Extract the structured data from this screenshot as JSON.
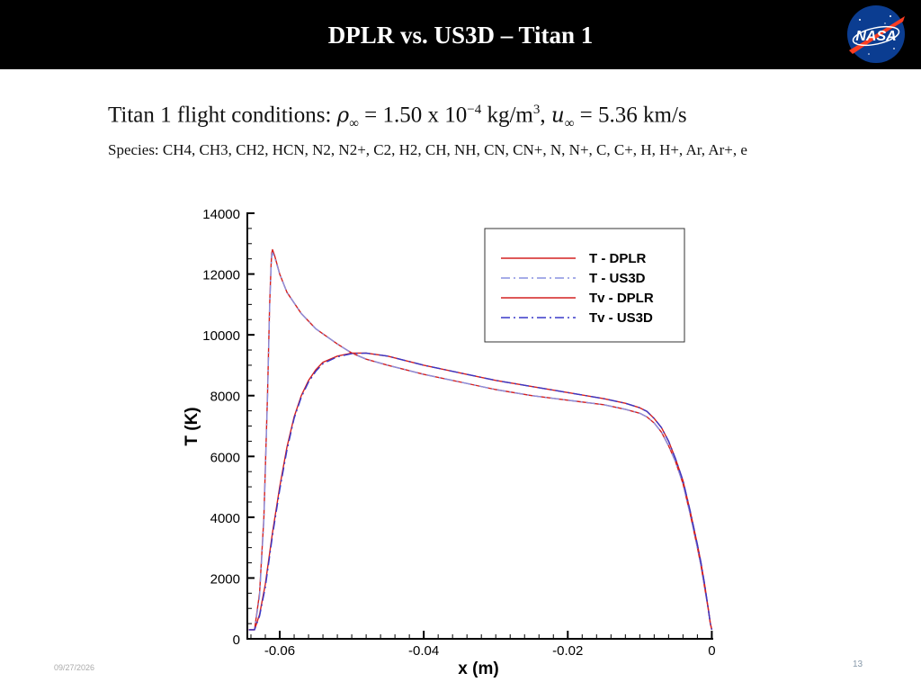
{
  "slide": {
    "title": "DPLR vs. US3D – Titan 1",
    "conditions_prefix": "Titan 1 flight conditions: ",
    "rho": "ρ",
    "inf": "∞",
    "eq1": " = 1.50 x 10",
    "exp1": "−4",
    "unit1": " kg/m",
    "exp2": "3",
    "comma": ", ",
    "u": "u",
    "eq2": " = 5.36 km/s",
    "species": "Species: CH4, CH3, CH2, HCN, N2, N2+, C2, H2, CH, NH, CN, CN+, N, N+, C, C+, H, H+, Ar, Ar+, e",
    "footer_date": "09/27/2026",
    "page_number": "13"
  },
  "logo": {
    "text": "NASA",
    "colors": {
      "blue": "#0b3d91",
      "red": "#fc3d21"
    }
  },
  "chart_data": {
    "type": "line",
    "xlabel": "x (m)",
    "ylabel": "T (K)",
    "xlim": [
      -0.0645,
      0.0002
    ],
    "ylim": [
      0,
      14000
    ],
    "xticks": [
      -0.06,
      -0.04,
      -0.02,
      0
    ],
    "xtick_labels": [
      "-0.06",
      "-0.04",
      "-0.02",
      "0"
    ],
    "yticks": [
      0,
      2000,
      4000,
      6000,
      8000,
      10000,
      12000,
      14000
    ],
    "ytick_labels": [
      "0",
      "2000",
      "4000",
      "6000",
      "8000",
      "10000",
      "12000",
      "14000"
    ],
    "legend_position": "top-right",
    "series": [
      {
        "name": "T - DPLR",
        "color": "#d42020",
        "dash": "solid",
        "x": [
          -0.0643,
          -0.0635,
          -0.0628,
          -0.0622,
          -0.0617,
          -0.0614,
          -0.0612,
          -0.0611,
          -0.061,
          -0.0607,
          -0.06,
          -0.059,
          -0.057,
          -0.055,
          -0.052,
          -0.05,
          -0.048,
          -0.045,
          -0.04,
          -0.035,
          -0.03,
          -0.025,
          -0.02,
          -0.015,
          -0.012,
          -0.01,
          -0.009,
          -0.008,
          -0.007,
          -0.006,
          -0.005,
          -0.004,
          -0.003,
          -0.002,
          -0.0015,
          -0.001,
          -0.0005,
          -0.0002,
          0.0
        ],
        "y": [
          300,
          300,
          1500,
          4000,
          8000,
          11000,
          12300,
          12700,
          12800,
          12600,
          12000,
          11400,
          10700,
          10200,
          9700,
          9400,
          9200,
          9000,
          8700,
          8450,
          8200,
          8000,
          7850,
          7700,
          7550,
          7420,
          7300,
          7100,
          6800,
          6350,
          5800,
          5100,
          4100,
          3000,
          2400,
          1700,
          1000,
          500,
          300
        ]
      },
      {
        "name": "T - US3D",
        "color": "#8890e0",
        "dash": "dashdot",
        "x": [
          -0.0643,
          -0.0635,
          -0.0628,
          -0.0622,
          -0.0617,
          -0.0614,
          -0.0612,
          -0.0611,
          -0.061,
          -0.0607,
          -0.06,
          -0.059,
          -0.057,
          -0.055,
          -0.052,
          -0.05,
          -0.048,
          -0.045,
          -0.04,
          -0.035,
          -0.03,
          -0.025,
          -0.02,
          -0.015,
          -0.012,
          -0.01,
          -0.009,
          -0.008,
          -0.007,
          -0.006,
          -0.005,
          -0.004,
          -0.003,
          -0.002,
          -0.0015,
          -0.001,
          -0.0005,
          -0.0002,
          0.0
        ],
        "y": [
          300,
          300,
          1400,
          3900,
          7900,
          10900,
          12200,
          12600,
          12700,
          12550,
          12000,
          11400,
          10700,
          10200,
          9700,
          9400,
          9200,
          9000,
          8700,
          8450,
          8200,
          8000,
          7850,
          7700,
          7550,
          7420,
          7300,
          7100,
          6800,
          6350,
          5800,
          5100,
          4100,
          3000,
          2400,
          1700,
          1000,
          500,
          300
        ]
      },
      {
        "name": "Tv - DPLR",
        "color": "#d42020",
        "dash": "solid",
        "x": [
          -0.0643,
          -0.0635,
          -0.0628,
          -0.062,
          -0.061,
          -0.06,
          -0.059,
          -0.058,
          -0.057,
          -0.056,
          -0.055,
          -0.054,
          -0.052,
          -0.05,
          -0.048,
          -0.045,
          -0.04,
          -0.035,
          -0.03,
          -0.025,
          -0.02,
          -0.015,
          -0.012,
          -0.01,
          -0.009,
          -0.008,
          -0.007,
          -0.006,
          -0.005,
          -0.004,
          -0.003,
          -0.002,
          -0.0015,
          -0.001,
          -0.0005,
          -0.0002,
          0.0
        ],
        "y": [
          300,
          300,
          800,
          1800,
          3500,
          5000,
          6300,
          7300,
          8000,
          8500,
          8850,
          9100,
          9300,
          9400,
          9400,
          9300,
          9000,
          8750,
          8500,
          8300,
          8100,
          7900,
          7750,
          7600,
          7480,
          7250,
          6950,
          6500,
          5900,
          5200,
          4200,
          3100,
          2500,
          1800,
          1000,
          500,
          300
        ]
      },
      {
        "name": "Tv - US3D",
        "color": "#3838c8",
        "dash": "dashdot",
        "x": [
          -0.0643,
          -0.0635,
          -0.0628,
          -0.062,
          -0.061,
          -0.06,
          -0.059,
          -0.058,
          -0.057,
          -0.056,
          -0.055,
          -0.054,
          -0.052,
          -0.05,
          -0.048,
          -0.045,
          -0.04,
          -0.035,
          -0.03,
          -0.025,
          -0.02,
          -0.015,
          -0.012,
          -0.01,
          -0.009,
          -0.008,
          -0.007,
          -0.006,
          -0.005,
          -0.004,
          -0.003,
          -0.002,
          -0.0015,
          -0.001,
          -0.0005,
          -0.0002,
          0.0
        ],
        "y": [
          300,
          300,
          750,
          1700,
          3400,
          4900,
          6200,
          7250,
          7950,
          8450,
          8800,
          9050,
          9280,
          9380,
          9400,
          9300,
          9000,
          8750,
          8500,
          8300,
          8100,
          7900,
          7750,
          7600,
          7480,
          7250,
          6950,
          6500,
          5900,
          5200,
          4200,
          3100,
          2500,
          1800,
          1000,
          500,
          300
        ]
      }
    ]
  }
}
